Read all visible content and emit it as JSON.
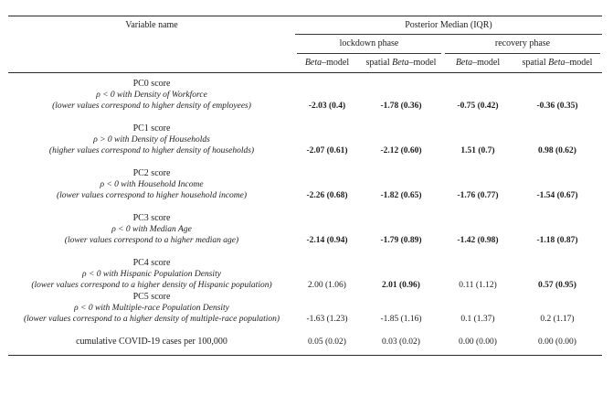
{
  "table": {
    "header": {
      "variable_name": "Variable name",
      "posterior_median": "Posterior Median (IQR)",
      "phases": [
        "lockdown phase",
        "recovery phase"
      ],
      "models": [
        {
          "pre": "",
          "beta": "Beta",
          "post": "–model"
        },
        {
          "pre": "spatial ",
          "beta": "Beta",
          "post": "–model"
        },
        {
          "pre": "",
          "beta": "Beta",
          "post": "–model"
        },
        {
          "pre": "spatial ",
          "beta": "Beta",
          "post": "–model"
        }
      ]
    },
    "rows": [
      {
        "lines": [
          "PC0 score",
          "ρ < 0 with Density of Workforce",
          "(lower values correspond to higher density of employees)"
        ],
        "values": [
          {
            "text": "-2.03 (0.4)",
            "bold": true
          },
          {
            "text": "-1.78 (0.36)",
            "bold": true
          },
          {
            "text": "-0.75 (0.42)",
            "bold": true
          },
          {
            "text": "-0.36 (0.35)",
            "bold": true
          }
        ]
      },
      {
        "lines": [
          "PC1 score",
          "ρ > 0 with Density of Households",
          "(higher values correspond to higher density of households)"
        ],
        "values": [
          {
            "text": "-2.07 (0.61)",
            "bold": true
          },
          {
            "text": "-2.12 (0.60)",
            "bold": true
          },
          {
            "text": "1.51 (0.7)",
            "bold": true
          },
          {
            "text": "0.98 (0.62)",
            "bold": true
          }
        ]
      },
      {
        "lines": [
          "PC2 score",
          "ρ < 0 with Household Income",
          "(lower values correspond to higher household income)"
        ],
        "values": [
          {
            "text": "-2.26 (0.68)",
            "bold": true
          },
          {
            "text": "-1.82 (0.65)",
            "bold": true
          },
          {
            "text": "-1.76 (0.77)",
            "bold": true
          },
          {
            "text": "-1.54 (0.67)",
            "bold": true
          }
        ]
      },
      {
        "lines": [
          "PC3 score",
          "ρ < 0 with Median Age",
          "(lower values correspond to a higher median age)"
        ],
        "values": [
          {
            "text": "-2.14 (0.94)",
            "bold": true
          },
          {
            "text": "-1.79 (0.89)",
            "bold": true
          },
          {
            "text": "-1.42 (0.98)",
            "bold": true
          },
          {
            "text": "-1.18 (0.87)",
            "bold": true
          }
        ]
      },
      {
        "lines": [
          "PC4 score",
          "ρ < 0 with Hispanic Population Density",
          "(lower values correspond to a higher density of Hispanic population)"
        ],
        "values": [
          {
            "text": "2.00 (1.06)",
            "bold": false
          },
          {
            "text": "2.01 (0.96)",
            "bold": true
          },
          {
            "text": "0.11 (1.12)",
            "bold": false
          },
          {
            "text": "0.57 (0.95)",
            "bold": true
          }
        ]
      },
      {
        "lines": [
          "PC5 score",
          "ρ < 0 with Multiple-race Population Density",
          "(lower values correspond to a higher density of multiple-race population)"
        ],
        "values": [
          {
            "text": "-1.63 (1.23)",
            "bold": false
          },
          {
            "text": "-1.85 (1.16)",
            "bold": false
          },
          {
            "text": "0.1 (1.37)",
            "bold": false
          },
          {
            "text": "0.2 (1.17)",
            "bold": false
          }
        ]
      },
      {
        "lines": [
          "cumulative COVID-19 cases per 100,000"
        ],
        "values": [
          {
            "text": "0.05 (0.02)",
            "bold": false
          },
          {
            "text": "0.03 (0.02)",
            "bold": false
          },
          {
            "text": "0.00 (0.00)",
            "bold": false
          },
          {
            "text": "0.00 (0.00)",
            "bold": false
          }
        ]
      }
    ]
  }
}
